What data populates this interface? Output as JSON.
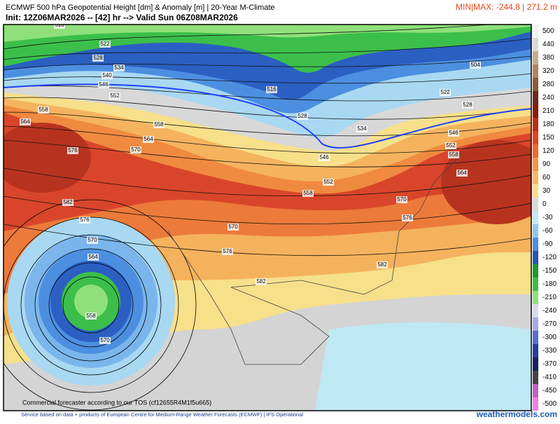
{
  "header": {
    "title": "ECMWF 500 hPa Geopotential Height [dm] & Anomaly [m] | 20-Year M-Climate",
    "subtitle": "Init: 12Z06MAR2026 -- [42] hr --> Valid Sun 06Z08MAR2026",
    "minmax": "MIN|MAX: -244.8 | 271.2 m"
  },
  "colorbar": {
    "labels": [
      "500",
      "440",
      "380",
      "320",
      "280",
      "240",
      "210",
      "180",
      "150",
      "120",
      "90",
      "60",
      "30",
      "0",
      "-30",
      "-60",
      "-90",
      "-120",
      "-150",
      "-180",
      "-210",
      "-240",
      "-270",
      "-300",
      "-330",
      "-370",
      "-410",
      "-450",
      "-500"
    ]
  },
  "map": {
    "contour_labels": [
      "510",
      "522",
      "528",
      "534",
      "540",
      "546",
      "552",
      "558",
      "564",
      "558",
      "564",
      "576",
      "570",
      "582",
      "576",
      "570",
      "564",
      "558",
      "570",
      "516",
      "528",
      "534",
      "546",
      "552",
      "558",
      "570",
      "576",
      "582",
      "582",
      "570",
      "576",
      "504",
      "522",
      "528",
      "546",
      "552",
      "558",
      "564"
    ],
    "watermark": "Commercial forecaster according to our TOS (cf12655R4M1f5u665)"
  },
  "footer": {
    "credit": "Service based on data + products of European Centre for Medium-Range Weather Forecasts (ECMWF) | IFS Operational",
    "site": "weathermodels.com"
  }
}
